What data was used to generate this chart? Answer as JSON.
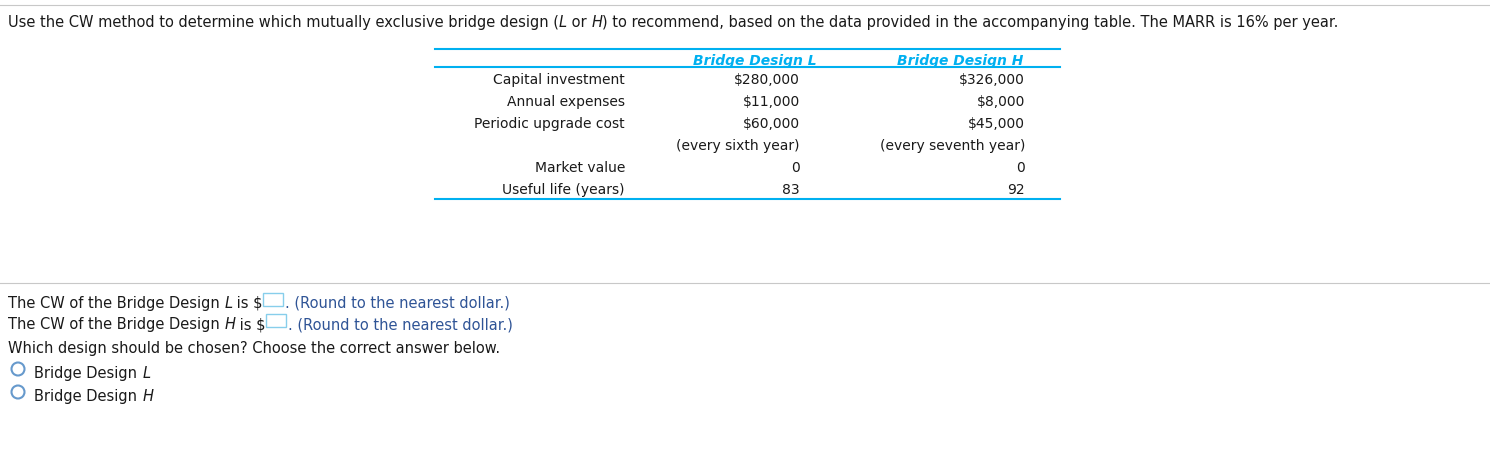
{
  "background_color": "#ffffff",
  "table_header_color": "#00b0f0",
  "table_line_color": "#00b0f0",
  "separator_color": "#c8c8c8",
  "input_box_color": "#87ceeb",
  "title_parts": [
    [
      "Use the CW method to determine which mutually exclusive bridge design (",
      "normal"
    ],
    [
      "L",
      "italic"
    ],
    [
      " or ",
      "normal"
    ],
    [
      "H",
      "italic"
    ],
    [
      ") to recommend, based on the data provided in the accompanying table. The MARR is 16% per year.",
      "normal"
    ]
  ],
  "col_headers": [
    "Bridge Design L",
    "Bridge Design H"
  ],
  "rows": [
    [
      "Capital investment",
      "$280,000",
      "$326,000"
    ],
    [
      "Annual expenses",
      "$11,000",
      "$8,000"
    ],
    [
      "Periodic upgrade cost",
      "$60,000",
      "$45,000"
    ],
    [
      "",
      "(every sixth year)",
      "(every seventh year)"
    ],
    [
      "Market value",
      "0",
      "0"
    ],
    [
      "Useful life (years)",
      "83",
      "92"
    ]
  ],
  "cw_lines": [
    [
      "The CW of the Bridge Design ",
      "L",
      " is $",
      ". (Round to the nearest dollar.)"
    ],
    [
      "The CW of the Bridge Design ",
      "H",
      " is $",
      ". (Round to the nearest dollar.)"
    ]
  ],
  "choice_text": "Which design should be chosen? Choose the correct answer below.",
  "options": [
    [
      "Bridge Design ",
      "L"
    ],
    [
      "Bridge Design ",
      "H"
    ]
  ]
}
